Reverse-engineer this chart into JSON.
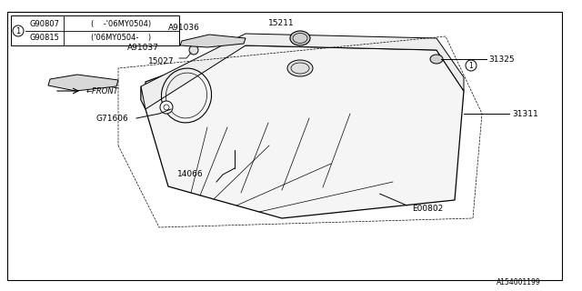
{
  "bg_color": "#ffffff",
  "border_color": "#000000",
  "line_color": "#000000",
  "title_font_size": 7,
  "label_font_size": 6.5,
  "parts": {
    "G90807": "G90807",
    "G90815": "G90815",
    "E00802": "E00802",
    "14066": "14066",
    "G71606": "G71606",
    "31311": "31311",
    "15027": "15027",
    "A91037": "A91037",
    "A91036": "A91036",
    "15211": "15211",
    "31325": "31325"
  },
  "table_text": [
    [
      "G90807",
      "(    -'06MY0504)"
    ],
    [
      "G90815",
      "('06MY0504-    )"
    ]
  ],
  "watermark": "A154001199",
  "circle_label": "1"
}
